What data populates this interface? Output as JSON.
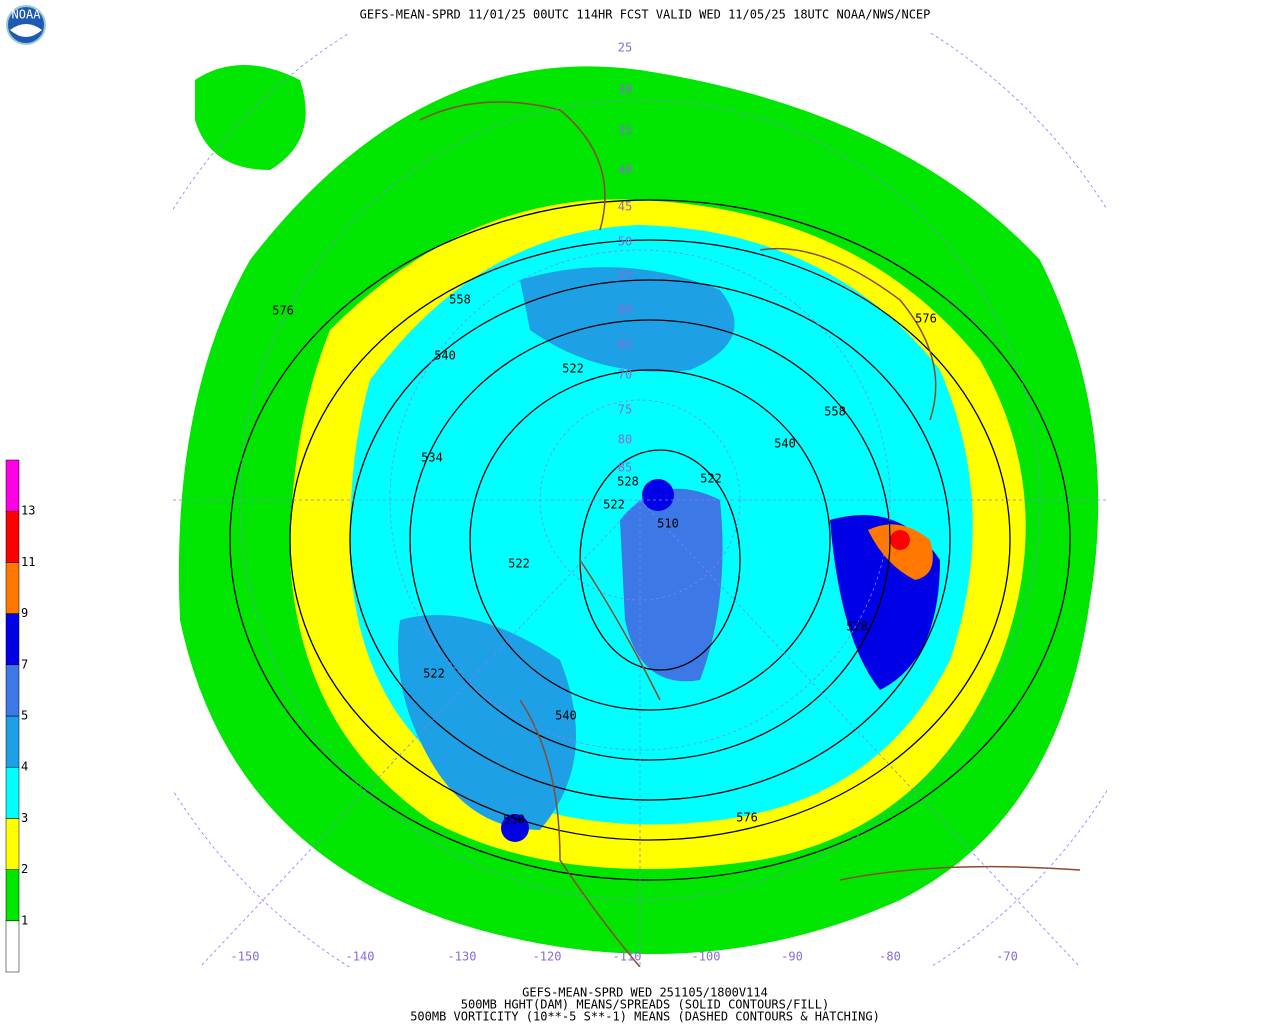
{
  "header": {
    "title": "GEFS-MEAN-SPRD 11/01/25 00UTC 114HR FCST VALID WED 11/05/25 18UTC NOAA/NWS/NCEP",
    "logo": "NOAA"
  },
  "legend": {
    "labels": [
      "1",
      "2",
      "3",
      "4",
      "5",
      "7",
      "9",
      "11",
      "13"
    ],
    "colors": [
      "#ffffff",
      "#00e600",
      "#ffff00",
      "#00ffff",
      "#1ea0e6",
      "#3c78e6",
      "#0000e6",
      "#ff7800",
      "#ff0000",
      "#ff00e6"
    ]
  },
  "map": {
    "contour_labels": [
      "576",
      "558",
      "540",
      "522",
      "534",
      "528",
      "522",
      "510",
      "522",
      "522",
      "522",
      "540",
      "558",
      "576",
      "528",
      "558",
      "540",
      "576"
    ],
    "latitude_labels": [
      "25",
      "30",
      "35",
      "40",
      "45",
      "50",
      "55",
      "60",
      "65",
      "70",
      "75",
      "80",
      "85"
    ],
    "longitude_labels": [
      "-150",
      "-140",
      "-130",
      "-120",
      "-110",
      "-100",
      "-90",
      "-80",
      "-70"
    ]
  },
  "caption": {
    "lines": [
      "GEFS-MEAN-SPRD WED 251105/1800V114",
      "500MB HGHT(DAM) MEANS/SPREADS (SOLID CONTOURS/FILL)",
      "500MB VORTICITY (10**-5 S**-1) MEANS (DASHED CONTOURS & HATCHING)"
    ]
  }
}
